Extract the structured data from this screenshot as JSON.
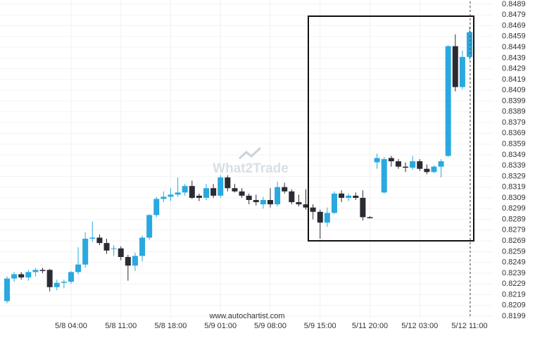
{
  "chart_data": {
    "type": "candlestick",
    "watermark": "What2Trade",
    "source": "www.autochartist.com",
    "up_color": "#29a9e0",
    "down_color": "#2b2b35",
    "grid": true,
    "ylim": [
      0.8199,
      0.8489
    ],
    "yticks": [
      0.8199,
      0.8209,
      0.8219,
      0.8229,
      0.8239,
      0.8249,
      0.8259,
      0.8269,
      0.8279,
      0.8289,
      0.8299,
      0.8309,
      0.8319,
      0.8329,
      0.8339,
      0.8349,
      0.8359,
      0.8369,
      0.8379,
      0.8389,
      0.8399,
      0.8409,
      0.8419,
      0.8429,
      0.8439,
      0.8449,
      0.8459,
      0.8469,
      0.8479,
      0.8489
    ],
    "categories": [
      null,
      null,
      null,
      null,
      null,
      null,
      null,
      null,
      null,
      "5/8 04:00",
      null,
      null,
      null,
      null,
      null,
      null,
      "5/8 11:00",
      null,
      null,
      null,
      null,
      null,
      null,
      "5/8 18:00",
      null,
      null,
      null,
      null,
      null,
      null,
      "5/9 01:00",
      null,
      null,
      null,
      null,
      null,
      null,
      "5/9 08:00",
      null,
      null,
      null,
      null,
      null,
      null,
      "5/9 15:00",
      null,
      null,
      null,
      null,
      null,
      null,
      "5/11 20:00",
      null,
      null,
      null,
      null,
      null,
      null,
      "5/12 03:00",
      null,
      null,
      null,
      null,
      null,
      null,
      "5/12 11:00"
    ],
    "open": [
      0.8213,
      0.8234,
      0.8238,
      0.8235,
      0.824,
      0.8242,
      0.8242,
      0.8226,
      0.823,
      0.8231,
      0.824,
      0.8247,
      0.8271,
      0.8272,
      0.8267,
      0.8262,
      0.8262,
      0.8254,
      0.8246,
      0.8255,
      0.8272,
      0.8293,
      0.8308,
      0.831,
      0.8312,
      0.8314,
      0.832,
      0.8311,
      0.8309,
      0.8318,
      0.8311,
      0.8328,
      0.8318,
      0.8315,
      0.8311,
      0.8307,
      0.8303,
      0.8307,
      0.8303,
      0.8319,
      0.8315,
      0.8305,
      0.8303,
      0.83,
      0.8296,
      0.8286,
      0.8295,
      0.8313,
      0.8309,
      0.8311,
      0.8309,
      0.8291,
      0.8342,
      0.8314,
      0.8346,
      0.8343,
      0.8338,
      0.8337,
      0.8343,
      0.8336,
      0.8333,
      0.8338,
      0.8348,
      0.845,
      0.8412,
      0.844
    ],
    "high": [
      0.8236,
      0.824,
      0.824,
      0.8242,
      0.8244,
      0.8244,
      0.8243,
      0.8233,
      0.8233,
      0.8241,
      0.8263,
      0.8277,
      0.8287,
      0.8275,
      0.8271,
      0.8265,
      0.8264,
      0.8256,
      0.8258,
      0.8274,
      0.8294,
      0.831,
      0.8315,
      0.8318,
      0.8328,
      0.8322,
      0.8325,
      0.8313,
      0.8322,
      0.8322,
      0.833,
      0.833,
      0.8322,
      0.8318,
      0.8313,
      0.8312,
      0.831,
      0.8318,
      0.8324,
      0.8323,
      0.8317,
      0.8312,
      0.8317,
      0.8303,
      0.8298,
      0.83,
      0.8315,
      0.8316,
      0.8313,
      0.8314,
      0.8316,
      0.8292,
      0.835,
      0.8347,
      0.8348,
      0.8345,
      0.8342,
      0.8348,
      0.8345,
      0.834,
      0.8339,
      0.8345,
      0.8451,
      0.8461,
      0.8446,
      0.8468
    ],
    "low": [
      0.8211,
      0.8231,
      0.8233,
      0.8232,
      0.8236,
      0.8239,
      0.8222,
      0.8223,
      0.8225,
      0.8229,
      0.8238,
      0.8244,
      0.8268,
      0.8265,
      0.8257,
      0.8255,
      0.8251,
      0.8232,
      0.8241,
      0.825,
      0.827,
      0.8291,
      0.8305,
      0.8306,
      0.831,
      0.8311,
      0.8308,
      0.8306,
      0.8307,
      0.8309,
      0.8309,
      0.8315,
      0.8314,
      0.8309,
      0.8303,
      0.8302,
      0.8299,
      0.83,
      0.8301,
      0.8313,
      0.8303,
      0.8301,
      0.8298,
      0.8289,
      0.8271,
      0.8282,
      0.8294,
      0.8305,
      0.8306,
      0.8307,
      0.8288,
      0.829,
      0.8336,
      0.8313,
      0.8338,
      0.8336,
      0.8333,
      0.8335,
      0.8334,
      0.8331,
      0.8332,
      0.8328,
      0.8347,
      0.8408,
      0.841,
      0.8437
    ],
    "close": [
      0.8234,
      0.8238,
      0.8235,
      0.824,
      0.8242,
      0.8241,
      0.8226,
      0.823,
      0.8231,
      0.824,
      0.8247,
      0.8271,
      0.8272,
      0.8267,
      0.826,
      0.8262,
      0.8254,
      0.8246,
      0.8255,
      0.8272,
      0.8293,
      0.8308,
      0.831,
      0.8312,
      0.8314,
      0.832,
      0.8309,
      0.8309,
      0.8318,
      0.8311,
      0.8328,
      0.8318,
      0.8315,
      0.8311,
      0.8307,
      0.8305,
      0.8307,
      0.8303,
      0.8319,
      0.8315,
      0.8305,
      0.8303,
      0.83,
      0.8296,
      0.8286,
      0.8295,
      0.8313,
      0.8309,
      0.8311,
      0.8309,
      0.8291,
      0.829,
      0.8346,
      0.8345,
      0.8343,
      0.8338,
      0.8337,
      0.8343,
      0.8336,
      0.8333,
      0.8338,
      0.8343,
      0.845,
      0.8412,
      0.844,
      0.8463
    ]
  }
}
